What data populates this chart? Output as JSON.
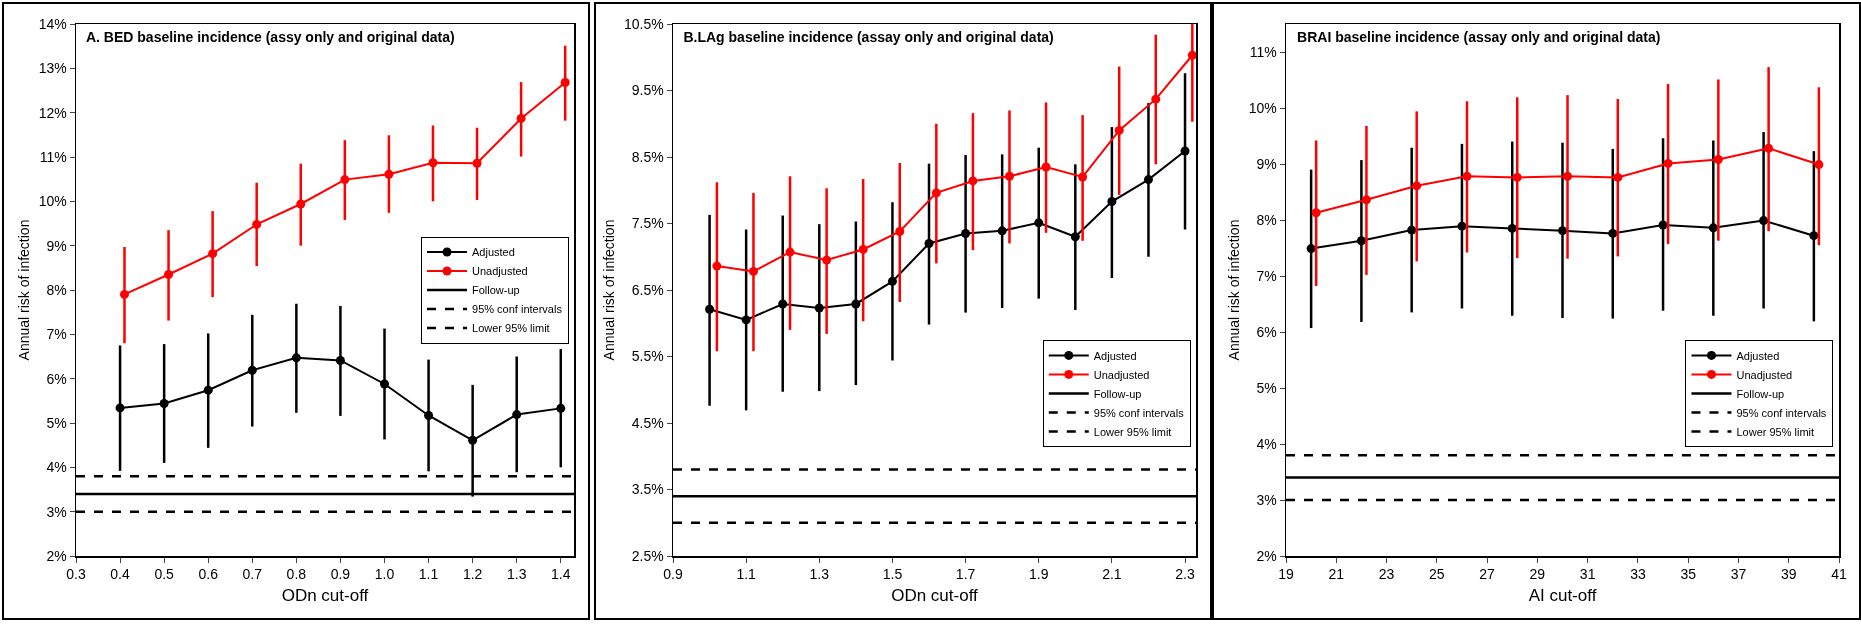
{
  "chart_data": [
    {
      "type": "line",
      "title": "A. BED baseline incidence (assy only and original data)",
      "xlabel": "ODn cut-off",
      "ylabel": "Annual risk of infection",
      "xlim": [
        0.3,
        1.43
      ],
      "xticks": [
        0.3,
        0.4,
        0.5,
        0.6,
        0.7,
        0.8,
        0.9,
        {
          "value": 1,
          "label": "1.0"
        },
        1.1,
        1.2,
        1.3,
        1.4
      ],
      "ylim": [
        2,
        14
      ],
      "yticks": [
        {
          "value": 2,
          "label": "2%"
        },
        {
          "value": 3,
          "label": "3%"
        },
        {
          "value": 4,
          "label": "4%"
        },
        {
          "value": 5,
          "label": "5%"
        },
        {
          "value": 6,
          "label": "6%"
        },
        {
          "value": 7,
          "label": "7%"
        },
        {
          "value": 8,
          "label": "8%"
        },
        {
          "value": 9,
          "label": "9%"
        },
        {
          "value": 10,
          "label": "10%"
        },
        {
          "value": 11,
          "label": "11%"
        },
        {
          "value": 12,
          "label": "12%"
        },
        {
          "value": 13,
          "label": "13%"
        },
        {
          "value": 14,
          "label": "14%"
        }
      ],
      "marker": "circle",
      "line_style": "solid",
      "legend": "right",
      "series": [
        {
          "name": "Adjusted",
          "color": "#000000",
          "x": [
            0.4,
            0.5,
            0.6,
            0.7,
            0.8,
            0.9,
            1.0,
            1.1,
            1.2,
            1.3,
            1.4
          ],
          "values": [
            5.34,
            5.44,
            5.74,
            6.19,
            6.47,
            6.41,
            5.88,
            5.17,
            4.61,
            5.19,
            5.33
          ],
          "errors": [
            [
              3.92,
              6.75
            ],
            [
              4.1,
              6.78
            ],
            [
              4.44,
              7.02
            ],
            [
              4.92,
              7.44
            ],
            [
              5.23,
              7.69
            ],
            [
              5.16,
              7.64
            ],
            [
              4.63,
              7.13
            ],
            [
              3.91,
              6.43
            ],
            [
              3.34,
              5.86
            ],
            [
              3.89,
              6.5
            ],
            [
              4.0,
              6.67
            ]
          ]
        },
        {
          "name": "Unadjusted",
          "color": "#ff0000",
          "x": [
            0.41,
            0.51,
            0.61,
            0.71,
            0.81,
            0.91,
            1.01,
            1.11,
            1.21,
            1.31,
            1.41
          ],
          "values": [
            7.9,
            8.35,
            8.82,
            9.48,
            9.94,
            10.49,
            10.61,
            10.87,
            10.86,
            11.87,
            12.68
          ],
          "errors": [
            [
              6.8,
              8.97
            ],
            [
              7.31,
              9.35
            ],
            [
              7.84,
              9.78
            ],
            [
              8.54,
              10.42
            ],
            [
              9.0,
              10.85
            ],
            [
              9.58,
              11.38
            ],
            [
              9.74,
              11.49
            ],
            [
              10.0,
              11.71
            ],
            [
              10.03,
              11.66
            ],
            [
              11.01,
              12.69
            ],
            [
              11.82,
              13.51
            ]
          ]
        }
      ],
      "ref_lines": [
        {
          "axis": "y",
          "value": 3.4,
          "label": "Follow-up",
          "color": "#000000",
          "line_style": "solid"
        },
        {
          "axis": "y",
          "value": 3.8,
          "label": "95% conf intervals",
          "color": "#000000",
          "line_style": "dashed"
        },
        {
          "axis": "y",
          "value": 3.0,
          "label": "Lower 95% limit",
          "color": "#000000",
          "line_style": "dashed"
        }
      ]
    },
    {
      "type": "line",
      "title": "B.LAg baseline incidence (assay only and original data)",
      "xlabel": "ODn cut-off",
      "ylabel": "Annual risk of infection",
      "xlim": [
        0.9,
        2.33
      ],
      "xticks": [
        0.9,
        1.1,
        1.3,
        1.5,
        1.7,
        1.9,
        2.1,
        2.3
      ],
      "ylim": [
        2.5,
        10.5
      ],
      "yticks": [
        {
          "value": 2.5,
          "label": "2.5%"
        },
        {
          "value": 3.5,
          "label": "3.5%"
        },
        {
          "value": 4.5,
          "label": "4.5%"
        },
        {
          "value": 5.5,
          "label": "5.5%"
        },
        {
          "value": 6.5,
          "label": "6.5%"
        },
        {
          "value": 7.5,
          "label": "7.5%"
        },
        {
          "value": 8.5,
          "label": "8.5%"
        },
        {
          "value": 9.5,
          "label": "9.5%"
        },
        {
          "value": 10.5,
          "label": "10.5%"
        }
      ],
      "marker": "circle",
      "line_style": "solid",
      "legend": "bottom right",
      "series": [
        {
          "name": "Adjusted",
          "color": "#000000",
          "x": [
            1.0,
            1.1,
            1.2,
            1.3,
            1.4,
            1.5,
            1.6,
            1.7,
            1.8,
            1.9,
            2.0,
            2.1,
            2.2,
            2.3
          ],
          "values": [
            6.21,
            6.05,
            6.29,
            6.23,
            6.29,
            6.63,
            7.2,
            7.35,
            7.39,
            7.51,
            7.3,
            7.83,
            8.16,
            8.59
          ],
          "errors": [
            [
              4.76,
              7.63
            ],
            [
              4.69,
              7.41
            ],
            [
              4.97,
              7.62
            ],
            [
              4.98,
              7.49
            ],
            [
              5.07,
              7.53
            ],
            [
              5.44,
              7.82
            ],
            [
              5.98,
              8.4
            ],
            [
              6.16,
              8.53
            ],
            [
              6.23,
              8.54
            ],
            [
              6.37,
              8.64
            ],
            [
              6.2,
              8.39
            ],
            [
              6.68,
              8.95
            ],
            [
              7.0,
              9.31
            ],
            [
              7.41,
              9.76
            ]
          ]
        },
        {
          "name": "Unadjusted",
          "color": "#ff0000",
          "x": [
            1.02,
            1.12,
            1.22,
            1.32,
            1.42,
            1.52,
            1.62,
            1.72,
            1.82,
            1.92,
            2.02,
            2.12,
            2.22,
            2.32
          ],
          "values": [
            6.86,
            6.78,
            7.07,
            6.95,
            7.11,
            7.38,
            7.96,
            8.14,
            8.21,
            8.35,
            8.2,
            8.9,
            9.37,
            10.03
          ],
          "errors": [
            [
              5.58,
              8.12
            ],
            [
              5.58,
              7.96
            ],
            [
              5.9,
              8.21
            ],
            [
              5.84,
              8.03
            ],
            [
              6.03,
              8.17
            ],
            [
              6.32,
              8.41
            ],
            [
              6.9,
              9.0
            ],
            [
              7.1,
              9.16
            ],
            [
              7.2,
              9.2
            ],
            [
              7.36,
              9.32
            ],
            [
              7.24,
              9.13
            ],
            [
              7.93,
              9.86
            ],
            [
              8.39,
              10.34
            ],
            [
              9.03,
              10.5
            ]
          ]
        }
      ],
      "ref_lines": [
        {
          "axis": "y",
          "value": 3.4,
          "label": "Follow-up",
          "color": "#000000",
          "line_style": "solid"
        },
        {
          "axis": "y",
          "value": 3.8,
          "label": "95% conf intervals",
          "color": "#000000",
          "line_style": "dashed"
        },
        {
          "axis": "y",
          "value": 3.0,
          "label": "Lower 95% limit",
          "color": "#000000",
          "line_style": "dashed"
        }
      ]
    },
    {
      "type": "line",
      "title": "BRAI baseline incidence (assay only and original data)",
      "xlabel": "AI cut-off",
      "ylabel": "Annual risk of infection",
      "xlim": [
        19,
        41
      ],
      "xticks": [
        19,
        21,
        23,
        25,
        27,
        29,
        31,
        33,
        35,
        37,
        39,
        41
      ],
      "ylim": [
        2,
        11.5
      ],
      "yticks": [
        {
          "value": 2,
          "label": "2%"
        },
        {
          "value": 3,
          "label": "3%"
        },
        {
          "value": 4,
          "label": "4%"
        },
        {
          "value": 5,
          "label": "5%"
        },
        {
          "value": 6,
          "label": "6%"
        },
        {
          "value": 7,
          "label": "7%"
        },
        {
          "value": 8,
          "label": "8%"
        },
        {
          "value": 9,
          "label": "9%"
        },
        {
          "value": 10,
          "label": "10%"
        },
        {
          "value": 11,
          "label": "11%"
        }
      ],
      "marker": "circle",
      "line_style": "solid",
      "legend": "bottom right",
      "series": [
        {
          "name": "Adjusted",
          "color": "#000000",
          "x": [
            20,
            22,
            24,
            26,
            28,
            30,
            32,
            34,
            36,
            38,
            40
          ],
          "values": [
            7.49,
            7.63,
            7.82,
            7.89,
            7.85,
            7.81,
            7.76,
            7.91,
            7.86,
            7.99,
            7.72
          ],
          "errors": [
            [
              6.07,
              8.9
            ],
            [
              6.18,
              9.07
            ],
            [
              6.35,
              9.29
            ],
            [
              6.42,
              9.36
            ],
            [
              6.29,
              9.4
            ],
            [
              6.25,
              9.38
            ],
            [
              6.24,
              9.27
            ],
            [
              6.38,
              9.46
            ],
            [
              6.29,
              9.42
            ],
            [
              6.42,
              9.57
            ],
            [
              6.19,
              9.23
            ]
          ]
        },
        {
          "name": "Unadjusted",
          "color": "#ff0000",
          "x": [
            20.2,
            22.2,
            24.2,
            26.2,
            28.2,
            30.2,
            32.2,
            34.2,
            36.2,
            38.2,
            40.2
          ],
          "values": [
            8.13,
            8.36,
            8.61,
            8.78,
            8.76,
            8.78,
            8.76,
            9.01,
            9.08,
            9.28,
            8.99
          ],
          "errors": [
            [
              6.82,
              9.42
            ],
            [
              7.02,
              9.68
            ],
            [
              7.26,
              9.94
            ],
            [
              7.42,
              10.12
            ],
            [
              7.32,
              10.19
            ],
            [
              7.31,
              10.23
            ],
            [
              7.35,
              10.16
            ],
            [
              7.57,
              10.43
            ],
            [
              7.63,
              10.51
            ],
            [
              7.8,
              10.73
            ],
            [
              7.55,
              10.37
            ]
          ]
        }
      ],
      "ref_lines": [
        {
          "axis": "y",
          "value": 3.4,
          "label": "Follow-up",
          "color": "#000000",
          "line_style": "solid"
        },
        {
          "axis": "y",
          "value": 3.8,
          "label": "95% conf intervals",
          "color": "#000000",
          "line_style": "dashed"
        },
        {
          "axis": "y",
          "value": 3.0,
          "label": "Lower 95% limit",
          "color": "#000000",
          "line_style": "dashed"
        }
      ]
    }
  ]
}
